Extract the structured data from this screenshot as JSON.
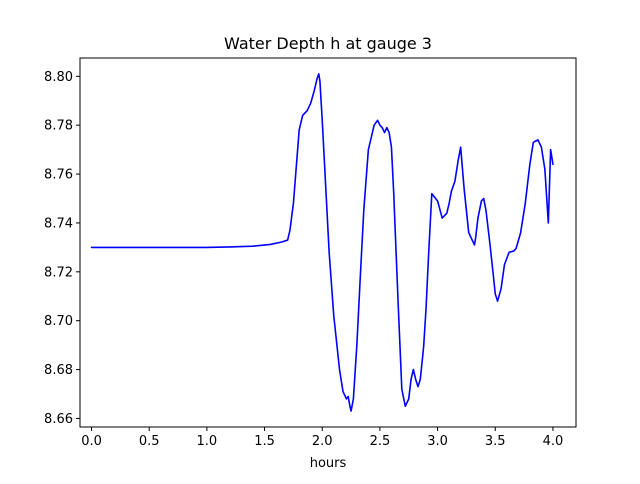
{
  "chart_data": {
    "type": "line",
    "title": "Water Depth h at gauge 3",
    "xlabel": "hours",
    "ylabel": "",
    "xlim": [
      -0.1,
      4.2
    ],
    "ylim": [
      8.6565,
      8.8075
    ],
    "xticks": [
      0.0,
      0.5,
      1.0,
      1.5,
      2.0,
      2.5,
      3.0,
      3.5,
      4.0
    ],
    "xtick_labels": [
      "0.0",
      "0.5",
      "1.0",
      "1.5",
      "2.0",
      "2.5",
      "3.0",
      "3.5",
      "4.0"
    ],
    "yticks": [
      8.66,
      8.68,
      8.7,
      8.72,
      8.74,
      8.76,
      8.78,
      8.8
    ],
    "ytick_labels": [
      "8.66",
      "8.68",
      "8.70",
      "8.72",
      "8.74",
      "8.76",
      "8.78",
      "8.80"
    ],
    "grid": false,
    "series": [
      {
        "color": "#0000ff",
        "x": [
          0.0,
          0.5,
          1.0,
          1.2,
          1.4,
          1.55,
          1.65,
          1.7,
          1.72,
          1.75,
          1.78,
          1.8,
          1.83,
          1.87,
          1.9,
          1.93,
          1.955,
          1.97,
          1.98,
          2.0,
          2.03,
          2.06,
          2.1,
          2.15,
          2.18,
          2.21,
          2.225,
          2.24,
          2.25,
          2.27,
          2.3,
          2.33,
          2.36,
          2.4,
          2.45,
          2.48,
          2.5,
          2.52,
          2.54,
          2.56,
          2.58,
          2.6,
          2.62,
          2.63,
          2.66,
          2.69,
          2.72,
          2.75,
          2.77,
          2.79,
          2.81,
          2.83,
          2.85,
          2.87,
          2.88,
          2.9,
          2.92,
          2.95,
          3.0,
          3.04,
          3.08,
          3.1,
          3.12,
          3.15,
          3.18,
          3.2,
          3.23,
          3.27,
          3.3,
          3.32,
          3.33,
          3.35,
          3.38,
          3.4,
          3.42,
          3.45,
          3.48,
          3.5,
          3.52,
          3.55,
          3.58,
          3.62,
          3.66,
          3.68,
          3.72,
          3.76,
          3.8,
          3.83,
          3.87,
          3.9,
          3.93,
          3.96,
          3.98,
          4.0
        ],
        "y": [
          8.73,
          8.73,
          8.73,
          8.7302,
          8.7305,
          8.7312,
          8.7322,
          8.733,
          8.737,
          8.748,
          8.766,
          8.778,
          8.784,
          8.786,
          8.789,
          8.794,
          8.799,
          8.801,
          8.798,
          8.782,
          8.755,
          8.728,
          8.702,
          8.68,
          8.671,
          8.668,
          8.669,
          8.665,
          8.663,
          8.668,
          8.69,
          8.718,
          8.745,
          8.77,
          8.78,
          8.782,
          8.78,
          8.779,
          8.777,
          8.779,
          8.777,
          8.771,
          8.752,
          8.74,
          8.705,
          8.672,
          8.665,
          8.668,
          8.676,
          8.68,
          8.676,
          8.673,
          8.676,
          8.685,
          8.69,
          8.705,
          8.725,
          8.752,
          8.749,
          8.742,
          8.744,
          8.748,
          8.753,
          8.757,
          8.766,
          8.771,
          8.754,
          8.736,
          8.733,
          8.731,
          8.734,
          8.742,
          8.749,
          8.75,
          8.745,
          8.733,
          8.72,
          8.711,
          8.708,
          8.713,
          8.723,
          8.728,
          8.7285,
          8.7295,
          8.736,
          8.748,
          8.764,
          8.773,
          8.774,
          8.771,
          8.762,
          8.74,
          8.77,
          8.764
        ]
      }
    ]
  }
}
